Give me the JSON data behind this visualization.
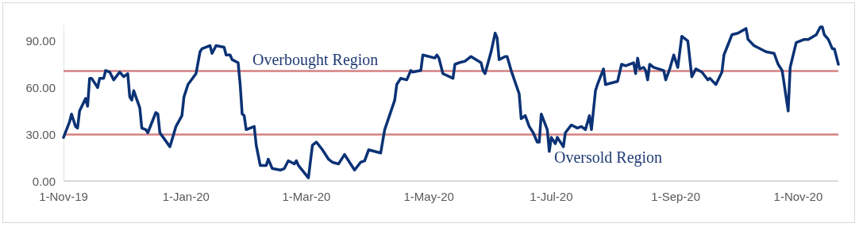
{
  "chart_data": {
    "type": "line",
    "x": [
      "2019-11-01",
      "2019-11-04",
      "2019-11-05",
      "2019-11-07",
      "2019-11-08",
      "2019-11-09",
      "2019-11-12",
      "2019-11-13",
      "2019-11-14",
      "2019-11-15",
      "2019-11-18",
      "2019-11-19",
      "2019-11-21",
      "2019-11-22",
      "2019-11-24",
      "2019-11-26",
      "2019-11-29",
      "2019-12-01",
      "2019-12-03",
      "2019-12-04",
      "2019-12-05",
      "2019-12-06",
      "2019-12-09",
      "2019-12-10",
      "2019-12-12",
      "2019-12-13",
      "2019-12-17",
      "2019-12-18",
      "2019-12-19",
      "2019-12-24",
      "2019-12-27",
      "2019-12-30",
      "2019-12-31",
      "2020-01-02",
      "2020-01-06",
      "2020-01-08",
      "2020-01-09",
      "2020-01-13",
      "2020-01-14",
      "2020-01-16",
      "2020-01-20",
      "2020-01-21",
      "2020-01-23",
      "2020-01-24",
      "2020-01-27",
      "2020-01-28",
      "2020-01-29",
      "2020-01-30",
      "2020-01-31",
      "2020-02-04",
      "2020-02-05",
      "2020-02-07",
      "2020-02-10",
      "2020-02-11",
      "2020-02-13",
      "2020-02-17",
      "2020-02-19",
      "2020-02-21",
      "2020-02-24",
      "2020-02-25",
      "2020-02-26",
      "2020-03-02",
      "2020-03-04",
      "2020-03-06",
      "2020-03-09",
      "2020-03-12",
      "2020-03-14",
      "2020-03-17",
      "2020-03-19",
      "2020-03-20",
      "2020-03-25",
      "2020-03-28",
      "2020-03-30",
      "2020-04-01",
      "2020-04-07",
      "2020-04-09",
      "2020-04-14",
      "2020-04-15",
      "2020-04-17",
      "2020-04-20",
      "2020-04-22",
      "2020-04-23",
      "2020-04-27",
      "2020-04-28",
      "2020-05-04",
      "2020-05-05",
      "2020-05-06",
      "2020-05-08",
      "2020-05-13",
      "2020-05-14",
      "2020-05-16",
      "2020-05-19",
      "2020-05-22",
      "2020-05-27",
      "2020-05-28",
      "2020-05-29",
      "2020-06-01",
      "2020-06-03",
      "2020-06-04",
      "2020-06-05",
      "2020-06-08",
      "2020-06-09",
      "2020-06-11",
      "2020-06-15",
      "2020-06-16",
      "2020-06-18",
      "2020-06-20",
      "2020-06-22",
      "2020-06-24",
      "2020-06-25",
      "2020-06-26",
      "2020-06-29",
      "2020-06-30",
      "2020-07-01",
      "2020-07-03",
      "2020-07-04",
      "2020-07-07",
      "2020-07-08",
      "2020-07-11",
      "2020-07-14",
      "2020-07-16",
      "2020-07-18",
      "2020-07-20",
      "2020-07-21",
      "2020-07-23",
      "2020-07-24",
      "2020-07-27",
      "2020-07-28",
      "2020-08-03",
      "2020-08-05",
      "2020-08-07",
      "2020-08-11",
      "2020-08-12",
      "2020-08-13",
      "2020-08-14",
      "2020-08-16",
      "2020-08-17",
      "2020-08-18",
      "2020-08-19",
      "2020-08-21",
      "2020-08-26",
      "2020-08-27",
      "2020-08-29",
      "2020-08-31",
      "2020-09-02",
      "2020-09-04",
      "2020-09-07",
      "2020-09-09",
      "2020-09-11",
      "2020-09-14",
      "2020-09-17",
      "2020-09-18",
      "2020-09-21",
      "2020-09-24",
      "2020-09-25",
      "2020-09-29",
      "2020-10-02",
      "2020-10-06",
      "2020-10-07",
      "2020-10-10",
      "2020-10-16",
      "2020-10-20",
      "2020-10-22",
      "2020-10-24",
      "2020-10-27",
      "2020-10-28",
      "2020-10-31",
      "2020-11-04",
      "2020-11-06",
      "2020-11-10",
      "2020-11-12",
      "2020-11-13",
      "2020-11-14",
      "2020-11-16",
      "2020-11-18",
      "2020-11-19",
      "2020-11-21"
    ],
    "series": [
      {
        "color": "#0b3275",
        "values": [
          28,
          38,
          43,
          35,
          34,
          45,
          53,
          48,
          66,
          66,
          60,
          66,
          66,
          71,
          70,
          65,
          70,
          67,
          69,
          54,
          52,
          58,
          47,
          34,
          33,
          31,
          44,
          43,
          31,
          22,
          35,
          42,
          54,
          62,
          69,
          83,
          85,
          87,
          82,
          87,
          86,
          81,
          81,
          78,
          76,
          62,
          43,
          42,
          33,
          35,
          23,
          10,
          10,
          14,
          8,
          7,
          8,
          13,
          11,
          13,
          10,
          2,
          23,
          25,
          20,
          14,
          12,
          11,
          15,
          17,
          7,
          12,
          13,
          20,
          18,
          33,
          52,
          62,
          66,
          65,
          71,
          70,
          71,
          81,
          79,
          81,
          79,
          69,
          66,
          75,
          76,
          77,
          80,
          76,
          71,
          69,
          83,
          95,
          92,
          78,
          80,
          80,
          71,
          56,
          40,
          42,
          35,
          31,
          25,
          25,
          43,
          33,
          19,
          28,
          24,
          28,
          22,
          31,
          36,
          34,
          35,
          33,
          42,
          33,
          58,
          62,
          72,
          62,
          64,
          75,
          74,
          76,
          69,
          79,
          72,
          73,
          71,
          65,
          75,
          73,
          71,
          65,
          72,
          81,
          73,
          93,
          90,
          67,
          72,
          70,
          65,
          66,
          62,
          70,
          81,
          94,
          95,
          98,
          91,
          87,
          83,
          82,
          75,
          71,
          45,
          73,
          89,
          91,
          91,
          94,
          99,
          99,
          94,
          91,
          85,
          85,
          75
        ]
      }
    ],
    "xlim": [
      "2019-11-01",
      "2020-11-21"
    ],
    "xticks": [
      {
        "value": "2019-11-01",
        "label": "1-Nov-19"
      },
      {
        "value": "2020-01-01",
        "label": "1-Jan-20"
      },
      {
        "value": "2020-03-01",
        "label": "1-Mar-20"
      },
      {
        "value": "2020-05-01",
        "label": "1-May-20"
      },
      {
        "value": "2020-07-01",
        "label": "1-Jul-20"
      },
      {
        "value": "2020-09-01",
        "label": "1-Sep-20"
      },
      {
        "value": "2020-11-01",
        "label": "1-Nov-20"
      }
    ],
    "yticks": [
      {
        "value": 0,
        "label": "0.00"
      },
      {
        "value": 30,
        "label": "30.00"
      },
      {
        "value": 60,
        "label": "60.00"
      },
      {
        "value": 90,
        "label": "90.00"
      }
    ],
    "ref_lines": [
      {
        "axis": "y",
        "value": 71,
        "label": "Overbought Region",
        "color": "#d48282"
      },
      {
        "axis": "y",
        "value": 30,
        "label": "Oversold Region",
        "color": "#d48282"
      }
    ],
    "ylim": [
      0,
      100
    ],
    "grid": false,
    "marker": "none",
    "line_style": "solid"
  }
}
